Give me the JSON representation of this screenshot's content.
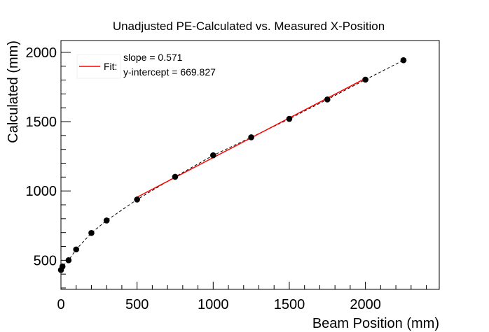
{
  "chart_data": {
    "type": "scatter",
    "title": "Unadjusted PE-Calculated vs. Measured X-Position",
    "xlabel": "Beam Position (mm)",
    "ylabel": "Calculated (mm)",
    "xlim": [
      0,
      2485
    ],
    "ylim": [
      290,
      2085
    ],
    "x_ticks": [
      0,
      500,
      1000,
      1500,
      2000
    ],
    "y_ticks": [
      500,
      1000,
      1500,
      2000
    ],
    "grid": false,
    "legend_position": "top-left",
    "series": [
      {
        "kind": "points",
        "color": "#000000",
        "x": [
          0,
          10,
          50,
          100,
          200,
          300,
          500,
          750,
          1000,
          1250,
          1500,
          1750,
          2000,
          2250
        ],
        "y": [
          430,
          455,
          500,
          578,
          697,
          787,
          938,
          1102,
          1257,
          1387,
          1520,
          1660,
          1803,
          1943
        ]
      },
      {
        "kind": "curve",
        "style": "dashed",
        "color": "#000000",
        "x": [
          0,
          10,
          50,
          100,
          200,
          300,
          500,
          750,
          1000,
          1250,
          1500,
          1750,
          2000,
          2250
        ],
        "y": [
          430,
          455,
          500,
          578,
          697,
          787,
          938,
          1102,
          1257,
          1387,
          1520,
          1660,
          1803,
          1943
        ]
      },
      {
        "name": "Fit:",
        "kind": "line",
        "color": "#ff0000",
        "x": [
          500,
          2000
        ],
        "y": [
          955,
          1812
        ]
      }
    ],
    "legend": {
      "label": "Fit:",
      "lines": [
        "slope = 0.571",
        "y-intercept = 669.827"
      ]
    }
  }
}
